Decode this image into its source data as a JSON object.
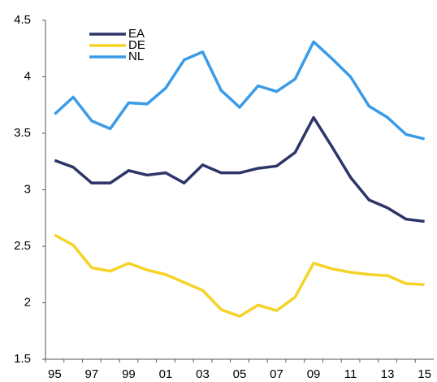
{
  "chart_data": {
    "type": "line",
    "categories": [
      "95",
      null,
      "97",
      null,
      "99",
      null,
      "01",
      null,
      "03",
      null,
      "05",
      null,
      "07",
      null,
      "09",
      null,
      "11",
      null,
      "13",
      null,
      "15"
    ],
    "series": [
      {
        "name": "EA",
        "color": "#2e3568",
        "values": [
          3.26,
          3.2,
          3.06,
          3.06,
          3.17,
          3.13,
          3.15,
          3.06,
          3.22,
          3.15,
          3.15,
          3.19,
          3.21,
          3.33,
          3.64,
          3.38,
          3.11,
          2.91,
          2.84,
          2.74,
          2.72
        ]
      },
      {
        "name": "DE",
        "color": "#f5d327",
        "values": [
          2.6,
          2.51,
          2.31,
          2.28,
          2.35,
          2.29,
          2.25,
          2.18,
          2.11,
          1.94,
          1.88,
          1.98,
          1.93,
          2.05,
          2.35,
          2.3,
          2.27,
          2.25,
          2.24,
          2.17,
          2.16
        ]
      },
      {
        "name": "NL",
        "color": "#3a9be8",
        "values": [
          3.67,
          3.82,
          3.61,
          3.54,
          3.77,
          3.76,
          3.9,
          4.15,
          4.22,
          3.88,
          3.73,
          3.92,
          3.87,
          3.98,
          4.31,
          4.16,
          4.0,
          3.74,
          3.64,
          3.49,
          3.45
        ]
      }
    ],
    "ylim": [
      1.5,
      4.5
    ],
    "yticks": [
      1.5,
      2,
      2.5,
      3,
      3.5,
      4,
      4.5
    ],
    "grid": false,
    "legend": "top-left"
  }
}
